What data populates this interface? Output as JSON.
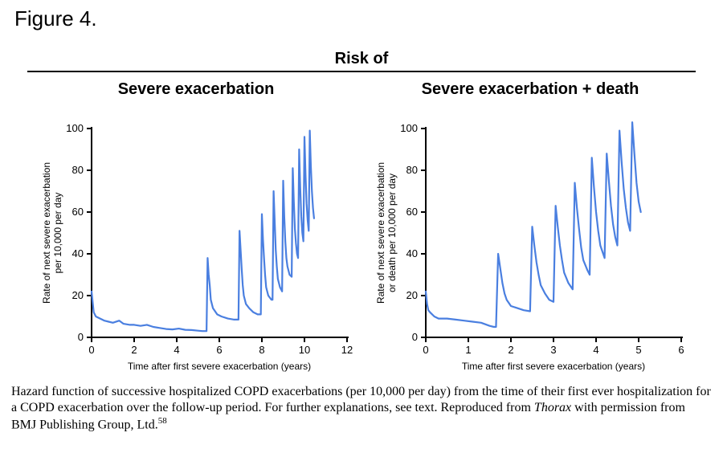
{
  "figure_label": "Figure 4.",
  "header_title": "Risk of",
  "left_subtitle": "Severe exacerbation",
  "right_subtitle": "Severe exacerbation + death",
  "caption_prefix": "Hazard function of successive hospitalized COPD exacerbations (per 10,000 per day) from the time of their first ever hospitalization for a COPD exacerbation over the follow-up period. For further explanations, see text. Reproduced from ",
  "caption_italic": "Thorax",
  "caption_suffix": " with permission from BMJ Publishing Group, Ltd.",
  "caption_sup": "58",
  "left_chart": {
    "type": "line",
    "xlim": [
      0,
      12
    ],
    "ylim": [
      0,
      100
    ],
    "xticks": [
      0,
      2,
      4,
      6,
      8,
      10,
      12
    ],
    "yticks": [
      0,
      20,
      40,
      60,
      80,
      100
    ],
    "xlabel": "Time after first severe exacerbation (years)",
    "ylabel_line1": "Rate of next severe exacerbation",
    "ylabel_line2": "per 10,000 per day",
    "line_color": "#4a7fe0",
    "line_width": 2.2,
    "axis_color": "#000000",
    "axis_width": 2,
    "tick_fontsize": 13,
    "label_fontsize": 12,
    "background_color": "#ffffff",
    "series": [
      [
        0,
        22
      ],
      [
        0.05,
        17
      ],
      [
        0.1,
        12
      ],
      [
        0.2,
        10
      ],
      [
        0.4,
        9
      ],
      [
        0.6,
        8
      ],
      [
        0.8,
        7.5
      ],
      [
        1.0,
        7
      ],
      [
        1.3,
        8
      ],
      [
        1.5,
        6.5
      ],
      [
        1.8,
        6
      ],
      [
        2.0,
        6
      ],
      [
        2.3,
        5.5
      ],
      [
        2.6,
        6
      ],
      [
        2.9,
        5
      ],
      [
        3.2,
        4.5
      ],
      [
        3.5,
        4
      ],
      [
        3.8,
        3.8
      ],
      [
        4.1,
        4.2
      ],
      [
        4.4,
        3.6
      ],
      [
        4.7,
        3.5
      ],
      [
        5.0,
        3.2
      ],
      [
        5.2,
        3
      ],
      [
        5.4,
        3
      ],
      [
        5.45,
        38
      ],
      [
        5.5,
        30
      ],
      [
        5.55,
        25
      ],
      [
        5.6,
        18
      ],
      [
        5.7,
        14
      ],
      [
        5.9,
        11
      ],
      [
        6.1,
        10
      ],
      [
        6.4,
        9
      ],
      [
        6.7,
        8.5
      ],
      [
        6.9,
        8.5
      ],
      [
        6.95,
        51
      ],
      [
        7.0,
        42
      ],
      [
        7.05,
        33
      ],
      [
        7.1,
        25
      ],
      [
        7.15,
        20
      ],
      [
        7.25,
        16
      ],
      [
        7.4,
        14
      ],
      [
        7.6,
        12
      ],
      [
        7.8,
        11
      ],
      [
        7.95,
        11
      ],
      [
        8.0,
        59
      ],
      [
        8.05,
        47
      ],
      [
        8.1,
        38
      ],
      [
        8.15,
        30
      ],
      [
        8.2,
        24
      ],
      [
        8.3,
        20
      ],
      [
        8.45,
        18
      ],
      [
        8.5,
        18
      ],
      [
        8.55,
        70
      ],
      [
        8.6,
        56
      ],
      [
        8.65,
        42
      ],
      [
        8.7,
        34
      ],
      [
        8.75,
        28
      ],
      [
        8.85,
        24
      ],
      [
        8.95,
        22
      ],
      [
        9.0,
        75
      ],
      [
        9.05,
        58
      ],
      [
        9.1,
        46
      ],
      [
        9.15,
        38
      ],
      [
        9.2,
        34
      ],
      [
        9.3,
        30
      ],
      [
        9.4,
        29
      ],
      [
        9.45,
        81
      ],
      [
        9.5,
        65
      ],
      [
        9.55,
        52
      ],
      [
        9.6,
        45
      ],
      [
        9.65,
        40
      ],
      [
        9.7,
        38
      ],
      [
        9.75,
        90
      ],
      [
        9.8,
        72
      ],
      [
        9.85,
        58
      ],
      [
        9.9,
        50
      ],
      [
        9.95,
        46
      ],
      [
        10.0,
        96
      ],
      [
        10.05,
        78
      ],
      [
        10.1,
        64
      ],
      [
        10.15,
        56
      ],
      [
        10.2,
        51
      ],
      [
        10.25,
        99
      ],
      [
        10.3,
        82
      ],
      [
        10.35,
        70
      ],
      [
        10.4,
        62
      ],
      [
        10.45,
        57
      ]
    ]
  },
  "right_chart": {
    "type": "line",
    "xlim": [
      0,
      6
    ],
    "ylim": [
      0,
      100
    ],
    "xticks": [
      0,
      1,
      2,
      3,
      4,
      5,
      6
    ],
    "yticks": [
      0,
      20,
      40,
      60,
      80,
      100
    ],
    "xlabel": "Time after first severe exacerbation (years)",
    "ylabel_line1": "Rate of next severe exacerbation",
    "ylabel_line2": "or death per 10,000 per day",
    "line_color": "#4a7fe0",
    "line_width": 2.2,
    "axis_color": "#000000",
    "axis_width": 2,
    "tick_fontsize": 13,
    "label_fontsize": 12,
    "background_color": "#ffffff",
    "series": [
      [
        0,
        22
      ],
      [
        0.03,
        16
      ],
      [
        0.06,
        13
      ],
      [
        0.1,
        12
      ],
      [
        0.2,
        10
      ],
      [
        0.3,
        9
      ],
      [
        0.5,
        9
      ],
      [
        0.7,
        8.5
      ],
      [
        0.9,
        8
      ],
      [
        1.1,
        7.5
      ],
      [
        1.3,
        7
      ],
      [
        1.5,
        5.5
      ],
      [
        1.6,
        5
      ],
      [
        1.65,
        5
      ],
      [
        1.7,
        40
      ],
      [
        1.75,
        33
      ],
      [
        1.8,
        26
      ],
      [
        1.85,
        21
      ],
      [
        1.9,
        18
      ],
      [
        2.0,
        15
      ],
      [
        2.15,
        14
      ],
      [
        2.3,
        13
      ],
      [
        2.45,
        12.5
      ],
      [
        2.5,
        53
      ],
      [
        2.55,
        44
      ],
      [
        2.6,
        36
      ],
      [
        2.65,
        30
      ],
      [
        2.7,
        25
      ],
      [
        2.8,
        21
      ],
      [
        2.9,
        18
      ],
      [
        3.0,
        17
      ],
      [
        3.05,
        63
      ],
      [
        3.1,
        53
      ],
      [
        3.15,
        44
      ],
      [
        3.2,
        37
      ],
      [
        3.25,
        31
      ],
      [
        3.35,
        26
      ],
      [
        3.45,
        23
      ],
      [
        3.5,
        74
      ],
      [
        3.55,
        62
      ],
      [
        3.6,
        52
      ],
      [
        3.65,
        43
      ],
      [
        3.7,
        37
      ],
      [
        3.8,
        32
      ],
      [
        3.85,
        30
      ],
      [
        3.9,
        86
      ],
      [
        3.95,
        72
      ],
      [
        4.0,
        60
      ],
      [
        4.05,
        51
      ],
      [
        4.1,
        44
      ],
      [
        4.2,
        38
      ],
      [
        4.25,
        88
      ],
      [
        4.3,
        75
      ],
      [
        4.35,
        63
      ],
      [
        4.4,
        54
      ],
      [
        4.45,
        48
      ],
      [
        4.5,
        44
      ],
      [
        4.55,
        99
      ],
      [
        4.6,
        84
      ],
      [
        4.65,
        71
      ],
      [
        4.7,
        62
      ],
      [
        4.75,
        55
      ],
      [
        4.8,
        51
      ],
      [
        4.85,
        103
      ],
      [
        4.9,
        88
      ],
      [
        4.95,
        74
      ],
      [
        5.0,
        65
      ],
      [
        5.05,
        60
      ]
    ]
  }
}
